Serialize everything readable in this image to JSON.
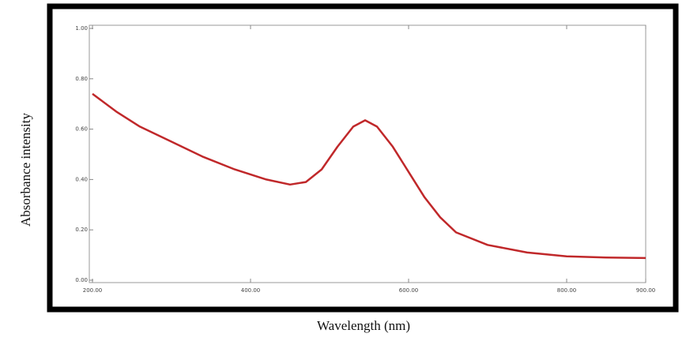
{
  "chart_data": {
    "type": "line",
    "x_label": "Wavelength (nm)",
    "y_label": "Absorbance intensity",
    "x": [
      200,
      230,
      260,
      300,
      340,
      380,
      420,
      450,
      470,
      490,
      510,
      530,
      545,
      560,
      580,
      600,
      620,
      640,
      660,
      700,
      750,
      800,
      850,
      900
    ],
    "values": [
      0.74,
      0.67,
      0.61,
      0.55,
      0.49,
      0.44,
      0.4,
      0.38,
      0.39,
      0.44,
      0.53,
      0.61,
      0.635,
      0.61,
      0.53,
      0.43,
      0.33,
      0.25,
      0.19,
      0.14,
      0.11,
      0.095,
      0.09,
      0.088
    ],
    "color": "#c0282a",
    "xlim": [
      200,
      900
    ],
    "ylim": [
      0,
      1
    ],
    "xticks": [
      {
        "value": 200,
        "label": "200.00"
      },
      {
        "value": 400,
        "label": "400.00"
      },
      {
        "value": 600,
        "label": "600.00"
      },
      {
        "value": 800,
        "label": "800.00"
      },
      {
        "value": 900,
        "label": "900.00"
      }
    ],
    "yticks": [
      {
        "value": 0,
        "label": "0.00"
      },
      {
        "value": 0.2,
        "label": "0.20"
      },
      {
        "value": 0.4,
        "label": "0.40"
      },
      {
        "value": 0.6,
        "label": "0.60"
      },
      {
        "value": 0.8,
        "label": "0.80"
      },
      {
        "value": 1,
        "label": "1.00"
      }
    ]
  }
}
